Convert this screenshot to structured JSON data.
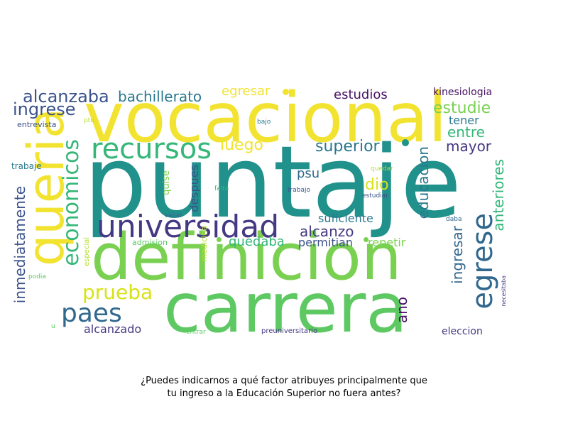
{
  "caption": {
    "line1": "¿Puedes indicarnos a qué factor atribuyes principalmente que",
    "line2": "tu ingreso a la Educación Superior no fuera antes?"
  },
  "palette": {
    "teal": "#21918c",
    "yellow": "#f2e330",
    "lime": "#7ad151",
    "green": "#5ec962",
    "sea": "#35b779",
    "blue": "#31688e",
    "indigo": "#3b528b",
    "purple": "#443983",
    "dark": "#471164",
    "cyan": "#2a788e"
  },
  "words": [
    {
      "text": "puntaje",
      "color": "#21918c"
    },
    {
      "text": "vocacional",
      "color": "#f2e330"
    },
    {
      "text": "definicion",
      "color": "#7ad151"
    },
    {
      "text": "carrera",
      "color": "#5ec962"
    },
    {
      "text": "queria",
      "color": "#f2e330"
    },
    {
      "text": "universidad",
      "color": "#443983"
    },
    {
      "text": "recursos",
      "color": "#35b779"
    },
    {
      "text": "economicos",
      "color": "#35b779"
    },
    {
      "text": "egrese",
      "color": "#31688e"
    },
    {
      "text": "paes",
      "color": "#31688e"
    },
    {
      "text": "prueba",
      "color": "#d8e219"
    },
    {
      "text": "alcanzaba",
      "color": "#3b528b"
    },
    {
      "text": "ingrese",
      "color": "#3b528b"
    },
    {
      "text": "bachillerato",
      "color": "#2a788e"
    },
    {
      "text": "egresar",
      "color": "#f2e330"
    },
    {
      "text": "estudios",
      "color": "#471164"
    },
    {
      "text": "kinesiologia",
      "color": "#471164"
    },
    {
      "text": "estudie",
      "color": "#7ad151"
    },
    {
      "text": "tener",
      "color": "#2a788e"
    },
    {
      "text": "entre",
      "color": "#35b779"
    },
    {
      "text": "mayor",
      "color": "#443983"
    },
    {
      "text": "superior",
      "color": "#2a788e"
    },
    {
      "text": "luego",
      "color": "#f2e330"
    },
    {
      "text": "psu",
      "color": "#31688e"
    },
    {
      "text": "dio",
      "color": "#d8e219"
    },
    {
      "text": "alcanzo",
      "color": "#443983"
    },
    {
      "text": "suficiente",
      "color": "#2a788e"
    },
    {
      "text": "educacion",
      "color": "#2a788e"
    },
    {
      "text": "quedaba",
      "color": "#35b779"
    },
    {
      "text": "permitian",
      "color": "#3b528b"
    },
    {
      "text": "repetir",
      "color": "#7ad151"
    },
    {
      "text": "ingresar",
      "color": "#31688e"
    },
    {
      "text": "anteriores",
      "color": "#35b779"
    },
    {
      "text": "ano",
      "color": "#471164"
    },
    {
      "text": "eleccion",
      "color": "#443983"
    },
    {
      "text": "alcanzado",
      "color": "#443983"
    },
    {
      "text": "inmediatamente",
      "color": "#3b528b"
    },
    {
      "text": "despues",
      "color": "#3b528b"
    },
    {
      "text": "quise",
      "color": "#7ad151"
    },
    {
      "text": "medicina",
      "color": "#b5de2b"
    },
    {
      "text": "especial",
      "color": "#b5de2b"
    },
    {
      "text": "entrevista",
      "color": "#3b528b"
    },
    {
      "text": "ptu",
      "color": "#b5de2b"
    },
    {
      "text": "bajo",
      "color": "#2a788e"
    },
    {
      "text": "trabaje",
      "color": "#2a788e"
    },
    {
      "text": "quedar",
      "color": "#b5de2b"
    },
    {
      "text": "falta",
      "color": "#35b779"
    },
    {
      "text": "trabajo",
      "color": "#3b528b"
    },
    {
      "text": "estudiar",
      "color": "#3b528b"
    },
    {
      "text": "salud",
      "color": "#31688e"
    },
    {
      "text": "admision",
      "color": "#5ec962"
    },
    {
      "text": "daba",
      "color": "#31688e"
    },
    {
      "text": "podia",
      "color": "#5ec962"
    },
    {
      "text": "u",
      "color": "#5ec962"
    },
    {
      "text": "entrar",
      "color": "#5ec962"
    },
    {
      "text": "preuniversitario",
      "color": "#443983"
    },
    {
      "text": "necesitaba",
      "color": "#443983"
    }
  ]
}
